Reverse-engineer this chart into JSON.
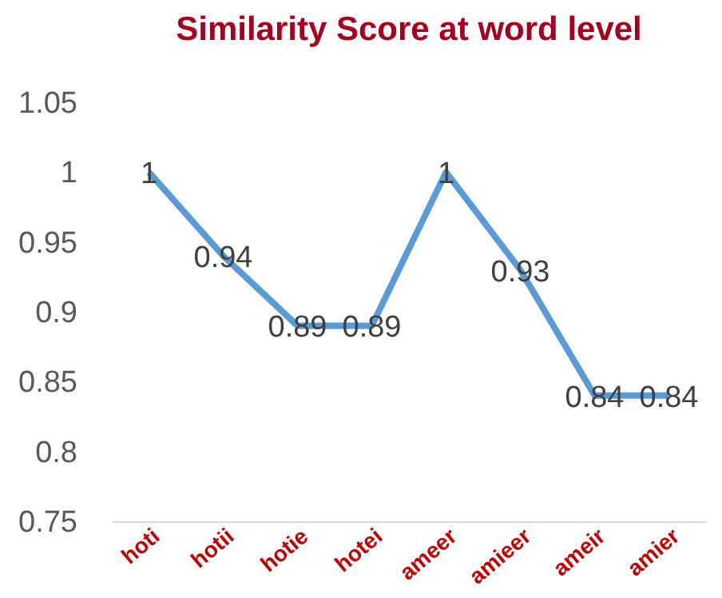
{
  "chart_data": {
    "type": "line",
    "title": "Similarity Score at word level",
    "categories": [
      "hoti",
      "hotii",
      "hotie",
      "hotei",
      "ameer",
      "amieer",
      "ameir",
      "amier"
    ],
    "series": [
      {
        "color": "#5b9bd5",
        "values": [
          1,
          0.94,
          0.89,
          0.89,
          1,
          0.93,
          0.84,
          0.84
        ]
      }
    ],
    "ylim": [
      0.75,
      1.05
    ],
    "yticks": [
      0.75,
      0.8,
      0.85,
      0.9,
      0.95,
      1,
      1.05
    ],
    "data_labels": true,
    "grid": false,
    "legend": false,
    "marker": "none",
    "line_style": "solid"
  }
}
